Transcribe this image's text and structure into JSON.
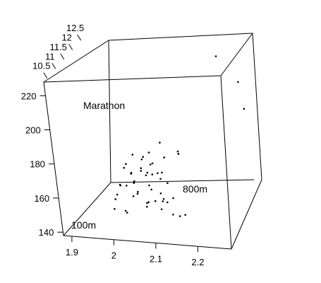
{
  "chart_data": {
    "type": "scatter",
    "title": "",
    "dimensions": 3,
    "axes": {
      "x": {
        "label": "100m",
        "ticks": [
          "1.9",
          "2",
          "2.1",
          "2.2"
        ],
        "range": [
          1.88,
          2.28
        ]
      },
      "y": {
        "label": "800m",
        "ticks": [
          "10.5",
          "11",
          "11.5",
          "12",
          "12.5"
        ],
        "range": [
          10.3,
          13.1
        ]
      },
      "z": {
        "label": "Marathon",
        "ticks": [
          "140",
          "160",
          "180",
          "200",
          "220"
        ],
        "range": [
          138,
          228
        ]
      }
    },
    "box": true,
    "grid": false,
    "points": [
      [
        2.2,
        12.5,
        225
      ],
      [
        2.25,
        12.4,
        212
      ],
      [
        2.27,
        12.1,
        200
      ],
      [
        2.13,
        11.4,
        180
      ],
      [
        2.14,
        11.2,
        181
      ],
      [
        2.08,
        11.6,
        182
      ],
      [
        2.06,
        11.4,
        178
      ],
      [
        2.1,
        11.3,
        177
      ],
      [
        2.05,
        11.2,
        176
      ],
      [
        2.02,
        11.4,
        176
      ],
      [
        2.04,
        11.5,
        174
      ],
      [
        2.07,
        11.3,
        173
      ],
      [
        2.02,
        11.0,
        175
      ],
      [
        2.05,
        11.1,
        172
      ],
      [
        2.06,
        11.4,
        171
      ],
      [
        2.0,
        11.3,
        169
      ],
      [
        2.03,
        11.0,
        170
      ],
      [
        2.08,
        11.0,
        170
      ],
      [
        2.09,
        11.3,
        168
      ],
      [
        2.04,
        11.3,
        168
      ],
      [
        2.06,
        11.1,
        168
      ],
      [
        2.02,
        11.2,
        167
      ],
      [
        2.05,
        11.4,
        166
      ],
      [
        2.07,
        11.5,
        165
      ],
      [
        2.03,
        11.1,
        164
      ],
      [
        2.08,
        11.4,
        163
      ],
      [
        2.1,
        11.3,
        162
      ],
      [
        2.0,
        11.0,
        162
      ],
      [
        2.01,
        11.1,
        161
      ],
      [
        2.06,
        11.2,
        161
      ],
      [
        1.99,
        11.2,
        160
      ],
      [
        2.04,
        11.0,
        159
      ],
      [
        2.09,
        11.1,
        158
      ],
      [
        2.01,
        11.5,
        158
      ],
      [
        2.1,
        11.0,
        156
      ],
      [
        2.05,
        11.5,
        155
      ],
      [
        1.98,
        11.2,
        154
      ],
      [
        2.02,
        11.4,
        153
      ],
      [
        2.07,
        11.2,
        152
      ],
      [
        2.1,
        11.5,
        151
      ],
      [
        1.97,
        11.3,
        150
      ],
      [
        2.0,
        11.6,
        149
      ],
      [
        2.04,
        11.4,
        148
      ],
      [
        2.08,
        11.6,
        147
      ],
      [
        2.0,
        11.1,
        146
      ],
      [
        2.03,
        11.7,
        145
      ],
      [
        2.06,
        11.8,
        145
      ],
      [
        2.12,
        11.3,
        143
      ],
      [
        1.96,
        11.4,
        143
      ],
      [
        2.02,
        11.8,
        141
      ],
      [
        2.09,
        11.6,
        140
      ],
      [
        1.98,
        11.6,
        139
      ],
      [
        2.05,
        11.9,
        139
      ],
      [
        2.11,
        11.8,
        138
      ]
    ]
  }
}
